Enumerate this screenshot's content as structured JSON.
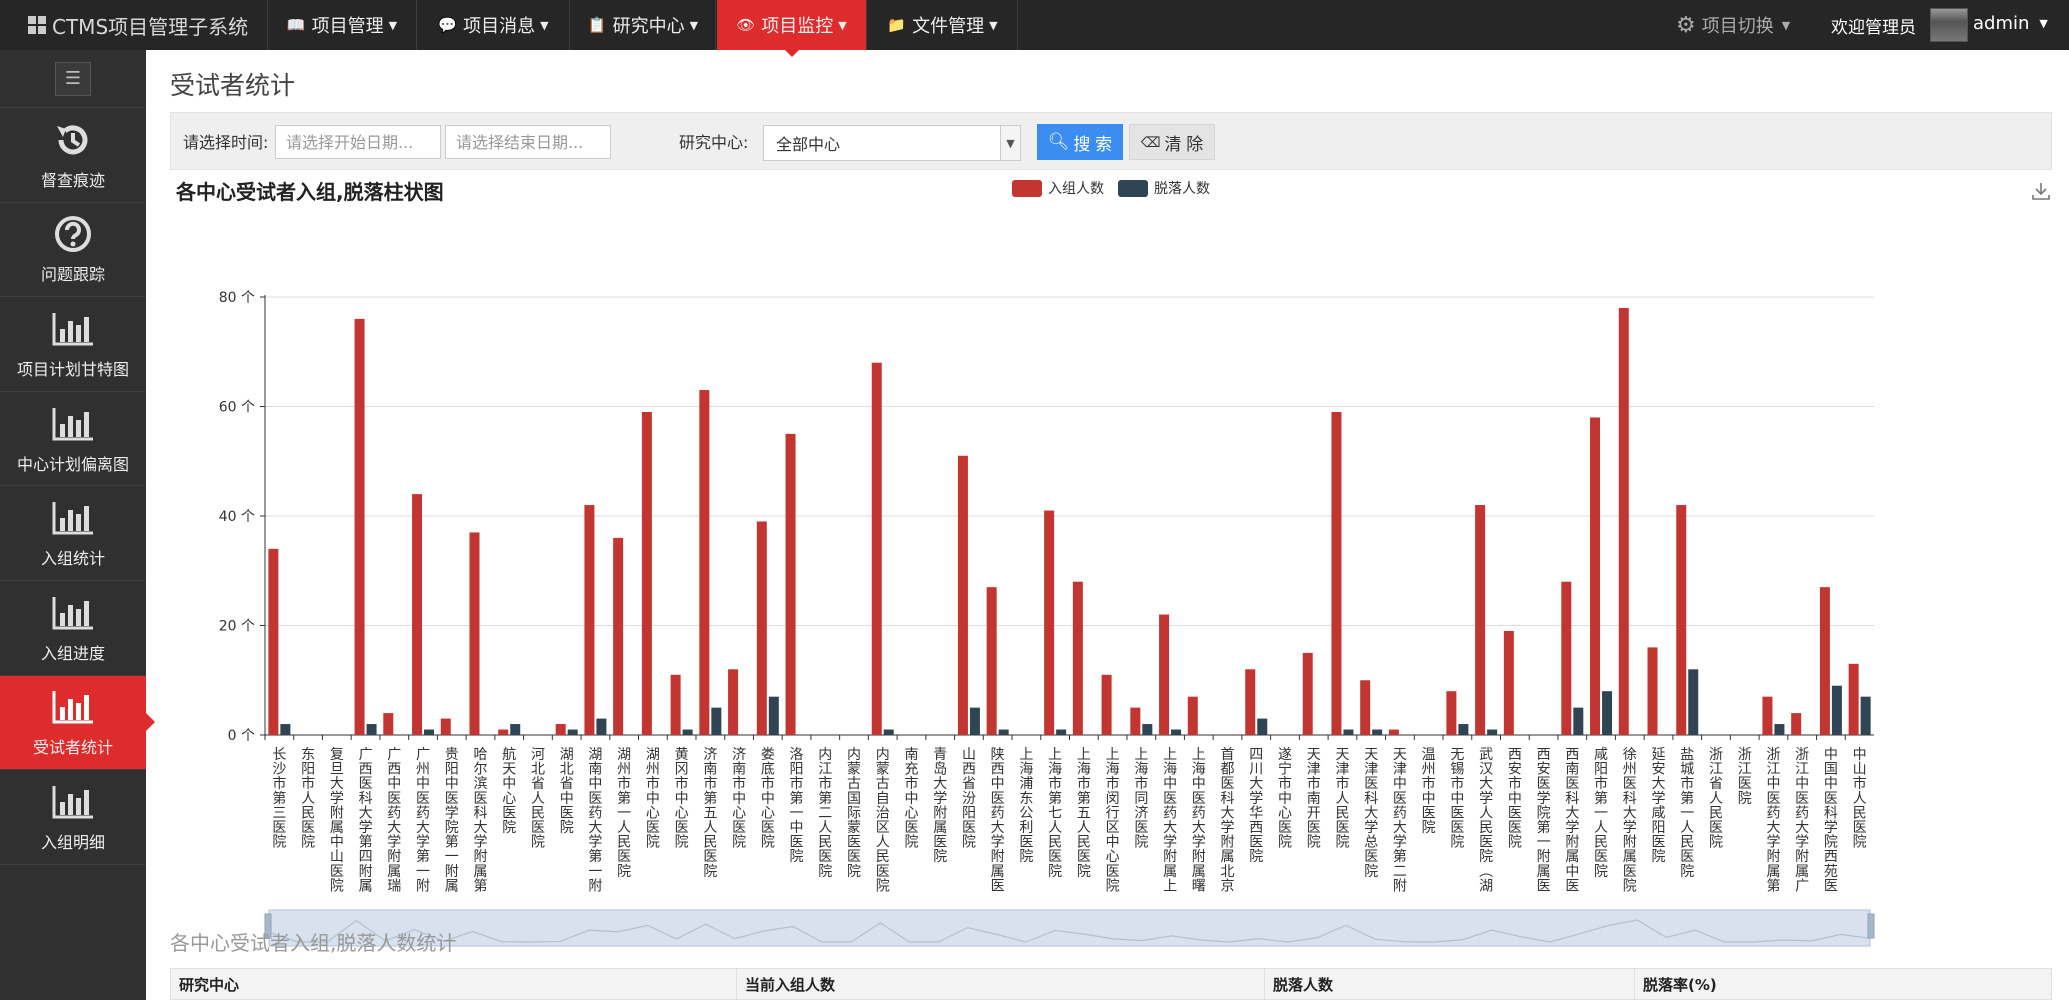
{
  "app": {
    "brand": "CTMS项目管理子系统"
  },
  "topnav": {
    "items": [
      {
        "label": "项目管理",
        "icon": "book-icon"
      },
      {
        "label": "项目消息",
        "icon": "chat-icon"
      },
      {
        "label": "研究中心",
        "icon": "clipboard-icon"
      },
      {
        "label": "项目监控",
        "icon": "eye-icon",
        "active": true
      },
      {
        "label": "文件管理",
        "icon": "folder-icon"
      }
    ],
    "project_switch": "项目切换",
    "welcome": "欢迎管理员",
    "username": "admin"
  },
  "sidebar": {
    "items": [
      {
        "label": "督查痕迹",
        "icon": "history-icon"
      },
      {
        "label": "问题跟踪",
        "icon": "question-icon"
      },
      {
        "label": "项目计划甘特图",
        "icon": "bar-chart-icon"
      },
      {
        "label": "中心计划偏离图",
        "icon": "bar-chart-icon"
      },
      {
        "label": "入组统计",
        "icon": "bar-chart-icon"
      },
      {
        "label": "入组进度",
        "icon": "bar-chart-icon"
      },
      {
        "label": "受试者统计",
        "icon": "bar-chart-icon",
        "active": true
      },
      {
        "label": "入组明细",
        "icon": "bar-chart-icon"
      }
    ]
  },
  "page": {
    "title": "受试者统计"
  },
  "filter": {
    "time_label": "请选择时间:",
    "start_placeholder": "请选择开始日期...",
    "end_placeholder": "请选择结束日期...",
    "center_label": "研究中心:",
    "center_value": "全部中心",
    "search_label": "搜 索",
    "clear_label": "清 除"
  },
  "colors": {
    "enrolled": "#c23531",
    "dropout": "#2f4554",
    "accent": "#de2b2b",
    "primary": "#3b8df1"
  },
  "chart_data": {
    "type": "bar",
    "title": "各中心受试者入组,脱落柱状图",
    "ylim": [
      0,
      80
    ],
    "yticks": [
      "0 个",
      "20 个",
      "40 个",
      "60 个",
      "80 个"
    ],
    "legend_position": "top",
    "categories": [
      "长沙市第三医院",
      "东阳市人民医院",
      "复旦大学附属中山医院青浦分院",
      "广西医科大学第四附属医院(柳",
      "广西中医药大学附属瑞康医院",
      "广州中医药大学第一附属医院",
      "贵阳中医学院第一附属医院",
      "哈尔滨医科大学附属第四医院",
      "航天中心医院",
      "河北省人民医院",
      "湖北省中医院",
      "湖南中医药大学第一附属医院",
      "湖州市第一人民医院",
      "湖州市中心医院",
      "黄冈市中心医院",
      "济南市第五人民医院",
      "济南市中心医院",
      "娄底市中心医院",
      "洛阳市第一中医院",
      "内江市第二人民医院",
      "内蒙古国际蒙医医院",
      "内蒙古自治区人民医院",
      "南充市中心医院",
      "青岛大学附属医院",
      "山西省汾阳医院",
      "陕西中医药大学附属医院",
      "上海浦东公利医院",
      "上海市第七人民医院",
      "上海市第五人民医院",
      "上海市闵行区中心医院",
      "上海市同济医院",
      "上海中医药大学附属上海中西",
      "上海中医药大学附属曙光医院",
      "首都医科大学附属北京潞河医院",
      "四川大学华西医院",
      "遂宁市中心医院",
      "天津市南开医院",
      "天津市人民医院",
      "天津医科大学总医院",
      "天津中医药大学第二附属医院",
      "温州市中医院",
      "无锡市中医医院",
      "武汉大学人民医院(湖北省人民",
      "西安市中医医院",
      "西安医学院第一附属医院",
      "西南医科大学附属中医医院",
      "咸阳市第一人民医院",
      "徐州医科大学附属医院",
      "延安大学咸阳医院",
      "盐城市第一人民医院",
      "浙江省人民医院",
      "浙江医院",
      "浙江中医药大学附属第一医院",
      "浙江中医药大学附属广兴医院",
      "中国中医科学院西苑医院",
      "中山市人民医院"
    ],
    "series": [
      {
        "name": "入组人数",
        "values": [
          34,
          0,
          0,
          76,
          4,
          44,
          3,
          37,
          1,
          0,
          2,
          42,
          36,
          59,
          11,
          63,
          12,
          39,
          55,
          0,
          0,
          68,
          0,
          0,
          51,
          27,
          0,
          41,
          28,
          11,
          5,
          22,
          7,
          0,
          12,
          0,
          15,
          59,
          10,
          1,
          0,
          8,
          42,
          19,
          0,
          28,
          58,
          78,
          16,
          42,
          0,
          0,
          7,
          4,
          27,
          13
        ]
      },
      {
        "name": "脱落人数",
        "values": [
          2,
          0,
          0,
          2,
          0,
          1,
          0,
          0,
          2,
          0,
          1,
          3,
          0,
          0,
          1,
          5,
          0,
          7,
          0,
          0,
          0,
          1,
          0,
          0,
          5,
          1,
          0,
          1,
          0,
          0,
          2,
          1,
          0,
          0,
          3,
          0,
          0,
          1,
          1,
          0,
          0,
          2,
          1,
          0,
          0,
          5,
          8,
          0,
          0,
          12,
          0,
          0,
          2,
          0,
          9,
          7
        ]
      }
    ]
  },
  "table": {
    "title": "各中心受试者入组,脱落人数统计",
    "headers": [
      "研究中心",
      "当前入组人数",
      "脱落人数",
      "脱落率(%)"
    ]
  }
}
